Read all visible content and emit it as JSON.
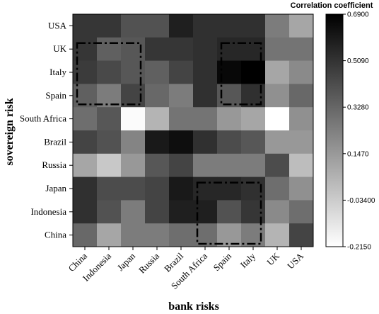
{
  "chart_data": {
    "type": "heatmap",
    "xlabel": "bank risks",
    "ylabel": "sovereign risk",
    "x_categories": [
      "China",
      "Indonesia",
      "Japan",
      "Russia",
      "Brazil",
      "South Africa",
      "Spain",
      "Italy",
      "UK",
      "USA"
    ],
    "y_categories": [
      "USA",
      "UK",
      "Italy",
      "Spain",
      "South Africa",
      "Brazil",
      "Russia",
      "Japan",
      "Indonesia",
      "China"
    ],
    "values": [
      [
        0.5,
        0.5,
        0.4,
        0.4,
        0.58,
        0.52,
        0.52,
        0.52,
        0.25,
        0.1
      ],
      [
        0.5,
        0.35,
        0.38,
        0.5,
        0.5,
        0.52,
        0.55,
        0.55,
        0.28,
        0.28
      ],
      [
        0.48,
        0.43,
        0.38,
        0.35,
        0.45,
        0.52,
        0.66,
        0.69,
        0.1,
        0.2
      ],
      [
        0.35,
        0.25,
        0.45,
        0.32,
        0.25,
        0.52,
        0.38,
        0.52,
        0.18,
        0.32
      ],
      [
        0.3,
        0.38,
        -0.2,
        0.05,
        0.28,
        0.28,
        0.15,
        0.1,
        -0.215,
        0.18
      ],
      [
        0.45,
        0.4,
        0.22,
        0.6,
        0.64,
        0.52,
        0.42,
        0.38,
        0.15,
        0.15
      ],
      [
        0.1,
        -0.02,
        0.15,
        0.38,
        0.45,
        0.25,
        0.25,
        0.25,
        0.42,
        0.02
      ],
      [
        0.52,
        0.42,
        0.42,
        0.45,
        0.6,
        0.55,
        0.55,
        0.52,
        0.3,
        0.18
      ],
      [
        0.52,
        0.4,
        0.25,
        0.45,
        0.58,
        0.58,
        0.4,
        0.5,
        0.2,
        0.3
      ],
      [
        0.32,
        0.1,
        0.25,
        0.25,
        0.3,
        0.3,
        0.15,
        0.25,
        0.05,
        0.45
      ]
    ],
    "color_scale": {
      "title": "Correlation coefficient",
      "min": -0.215,
      "max": 0.69,
      "low_color": "#ffffff",
      "high_color": "#000000",
      "tick_labels": [
        "0.6900",
        "0.5090",
        "0.3280",
        "0.1470",
        "-0.03400",
        "-0.2150"
      ],
      "tick_values": [
        0.69,
        0.509,
        0.328,
        0.147,
        -0.034,
        -0.215
      ]
    },
    "highlight_boxes": [
      {
        "x_from": "China",
        "x_to": "Japan",
        "y_from": "UK",
        "y_to": "Spain"
      },
      {
        "x_from": "Spain",
        "x_to": "Italy",
        "y_from": "UK",
        "y_to": "Spain"
      },
      {
        "x_from": "South Africa",
        "x_to": "Italy",
        "y_from": "Japan",
        "y_to": "China"
      }
    ],
    "grid": false,
    "legend_position": "right"
  }
}
